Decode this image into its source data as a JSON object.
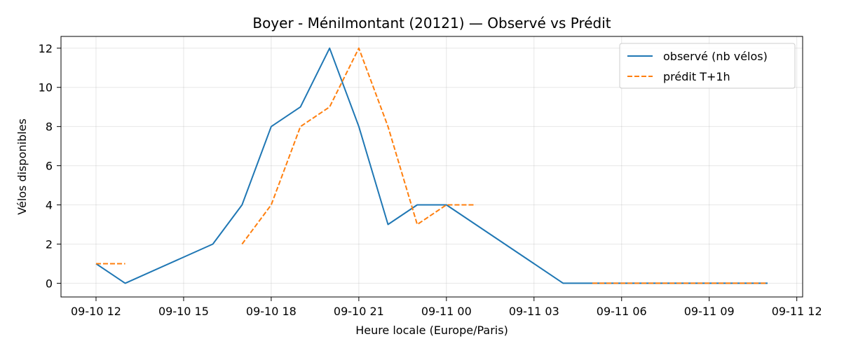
{
  "chart_data": {
    "type": "line",
    "title": "Boyer - Ménilmontant (20121) — Observé vs Prédit",
    "xlabel": "Heure locale (Europe/Paris)",
    "ylabel": "Vélos disponibles",
    "x_ticks": [
      "09-10 12",
      "09-10 15",
      "09-10 18",
      "09-10 21",
      "09-11 00",
      "09-11 03",
      "09-11 06",
      "09-11 09",
      "09-11 12"
    ],
    "x_tick_hours": [
      12,
      15,
      18,
      21,
      24,
      27,
      30,
      33,
      36
    ],
    "xlim": [
      10.8,
      36.2
    ],
    "ylim": [
      -0.7,
      12.6
    ],
    "y_ticks": [
      0,
      2,
      4,
      6,
      8,
      10,
      12
    ],
    "grid": true,
    "legend_position": "top-right",
    "series": [
      {
        "name": "observé (nb vélos)",
        "color": "#1f77b4",
        "dash": "solid",
        "x": [
          12,
          13,
          16,
          17,
          18,
          19,
          20,
          21,
          22,
          23,
          24,
          28,
          35
        ],
        "y": [
          1,
          0,
          2,
          4,
          8,
          9,
          12,
          8,
          3,
          4,
          4,
          0,
          0
        ]
      },
      {
        "name": "prédit T+1h",
        "color": "#ff7f0e",
        "dash": "dashed",
        "segments": [
          {
            "x": [
              12,
              13
            ],
            "y": [
              1,
              1
            ]
          },
          {
            "x": [
              17,
              18,
              19,
              20,
              21,
              22,
              23,
              24,
              25
            ],
            "y": [
              2,
              4,
              8,
              9,
              12,
              8,
              3,
              4,
              4
            ]
          },
          {
            "x": [
              29,
              35
            ],
            "y": [
              0,
              0
            ]
          }
        ]
      }
    ]
  }
}
